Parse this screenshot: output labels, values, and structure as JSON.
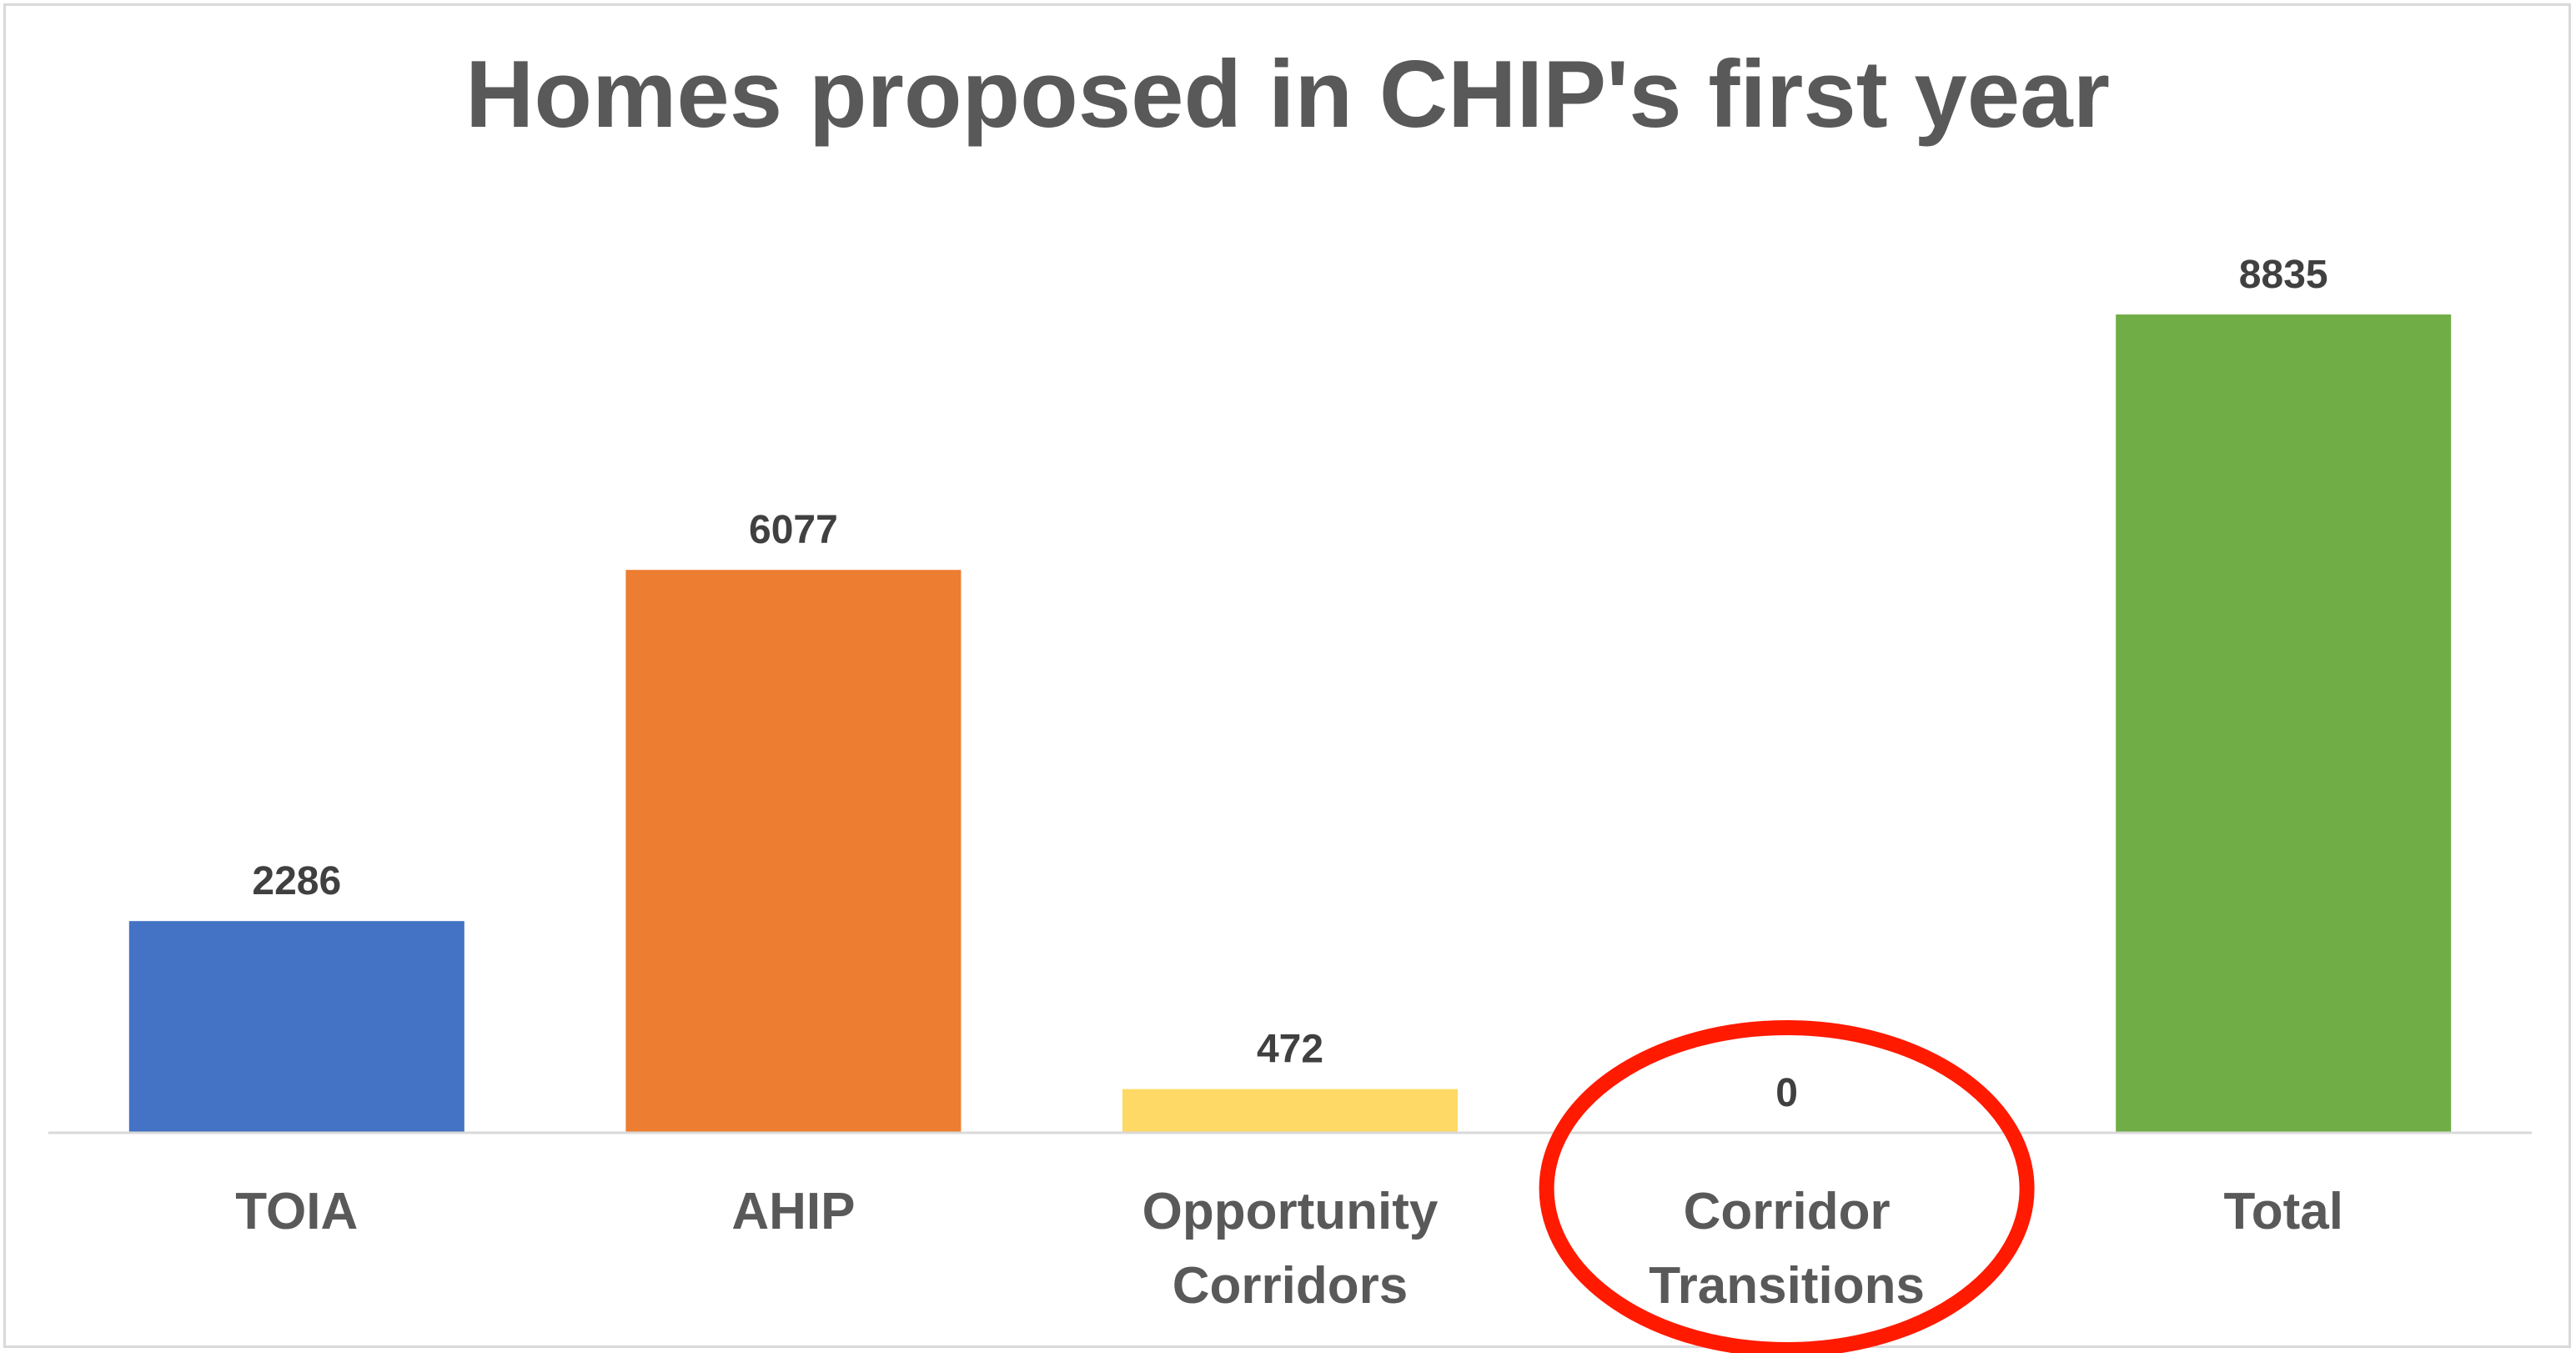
{
  "chart_data": {
    "type": "bar",
    "title": "Homes proposed in CHIP's first year",
    "categories": [
      [
        "TOIA"
      ],
      [
        "AHIP"
      ],
      [
        "Opportunity",
        "Corridors"
      ],
      [
        "Corridor",
        "Transitions"
      ],
      [
        "Total"
      ]
    ],
    "values": [
      2286,
      6077,
      472,
      0,
      8835
    ],
    "data_labels": [
      "2286",
      "6077",
      "472",
      "0",
      "8835"
    ],
    "bar_colors": [
      "#4472C4",
      "#ED7D31",
      "#FFD966",
      "#4472C4",
      "#70AD47"
    ],
    "ylim": [
      0,
      10000
    ],
    "xlabel": "",
    "ylabel": "",
    "grid": false,
    "legend": "none",
    "annotation": {
      "type": "ellipse",
      "target_category_index": 3,
      "color": "#FF1A00"
    }
  },
  "colors": {
    "title": "#595959",
    "data_label": "#404040",
    "category_label": "#595959",
    "axis_line": "#d9d9d9"
  }
}
